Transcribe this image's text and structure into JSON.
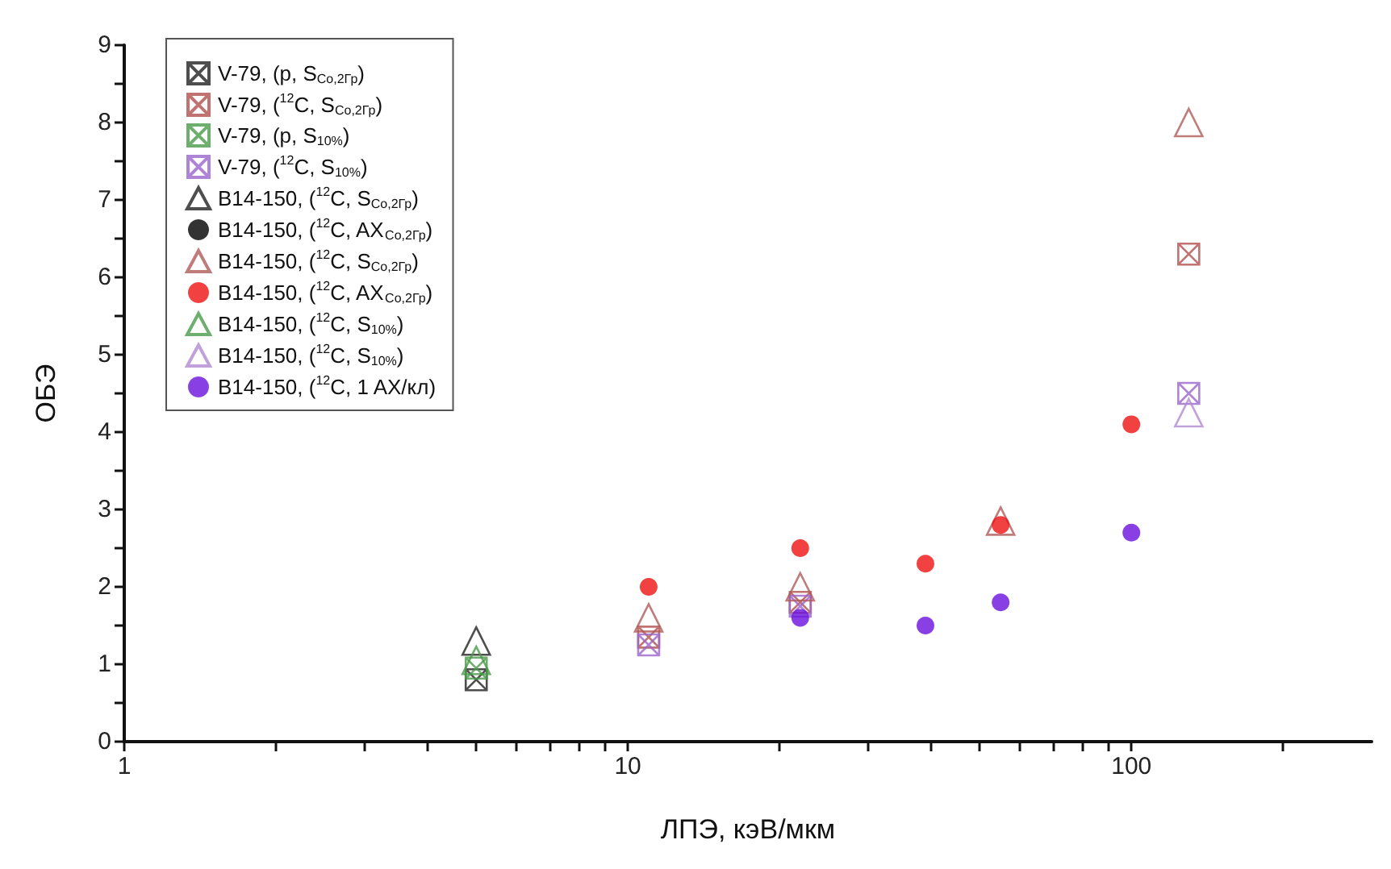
{
  "chart_data": {
    "type": "scatter",
    "xlabel": "ЛПЭ, кэВ/мкм",
    "ylabel": "ОБЭ",
    "log": "x",
    "grid": false,
    "legend": "top left",
    "xlim": [
      1,
      300
    ],
    "xticks": [
      1,
      {
        "value": 2,
        "label": null
      },
      {
        "value": 3,
        "label": null
      },
      {
        "value": 4,
        "label": null
      },
      {
        "value": 5,
        "label": null
      },
      {
        "value": 6,
        "label": null
      },
      {
        "value": 7,
        "label": null
      },
      {
        "value": 8,
        "label": null
      },
      {
        "value": 9,
        "label": null
      },
      10,
      {
        "value": 20,
        "label": null
      },
      {
        "value": 30,
        "label": null
      },
      {
        "value": 40,
        "label": null
      },
      {
        "value": 50,
        "label": null
      },
      {
        "value": 60,
        "label": null
      },
      {
        "value": 70,
        "label": null
      },
      {
        "value": 80,
        "label": null
      },
      {
        "value": 90,
        "label": null
      },
      100,
      {
        "value": 200,
        "label": null
      }
    ],
    "ylim": [
      0,
      9
    ],
    "yticks": [
      0,
      {
        "value": 0.5,
        "label": null
      },
      1,
      {
        "value": 1.5,
        "label": null
      },
      2,
      {
        "value": 2.5,
        "label": null
      },
      3,
      {
        "value": 3.5,
        "label": null
      },
      4,
      {
        "value": 4.5,
        "label": null
      },
      5,
      {
        "value": 5.5,
        "label": null
      },
      6,
      {
        "value": 6.5,
        "label": null
      },
      7,
      {
        "value": 7.5,
        "label": null
      },
      8,
      {
        "value": 8.5,
        "label": null
      },
      9
    ],
    "series": [
      {
        "name": "V-79, (p, S$_{Co,2Гр}$)",
        "color": "#222222",
        "marker": "cross",
        "x": [
          5
        ],
        "values": [
          0.8
        ]
      },
      {
        "name": "V-79, ($^{12}$C, S$_{Co,2Гр}$)",
        "color": "#b0504d",
        "marker": "cross",
        "x": [
          11,
          22,
          130
        ],
        "values": [
          1.35,
          1.8,
          6.3
        ]
      },
      {
        "name": "V-79, (p, S$_{10%}$)",
        "color": "#4a9a4a",
        "marker": "cross",
        "x": [
          5
        ],
        "values": [
          0.95
        ]
      },
      {
        "name": "V-79, ($^{12}$C, S$_{10%}$)",
        "color": "#9a66cc",
        "marker": "cross",
        "x": [
          11,
          22,
          130
        ],
        "values": [
          1.25,
          1.75,
          4.5
        ]
      },
      {
        "name": "B14-150, ($^{12}$C, S$_{Co,2Гр}$)",
        "color": "#222222",
        "marker": "triangle",
        "x": [
          5
        ],
        "values": [
          1.3
        ]
      },
      {
        "name": "B14-150, ($^{12}$C, AX$_{Co,2Гр}$)",
        "color": "#000000",
        "marker": "circle"
      },
      {
        "name": "B14-150, ($^{12}$C, S$_{Co,2Гр}$)",
        "color": "#b05a5a",
        "marker": "triangle",
        "x": [
          11,
          22,
          55,
          130
        ],
        "values": [
          1.6,
          2.0,
          2.85,
          8.0
        ]
      },
      {
        "name": "B14-150, ($^{12}$C, AX$_{Co,2Гр}$)",
        "color": "#ee1111",
        "marker": "circle",
        "x": [
          11,
          22,
          39,
          55,
          100
        ],
        "values": [
          2.0,
          2.5,
          2.3,
          2.8,
          4.1
        ]
      },
      {
        "name": "B14-150, ($^{12}$C, S$_{10%}$)",
        "color": "#4a9a4a",
        "marker": "triangle",
        "x": [
          5
        ],
        "values": [
          1.05
        ]
      },
      {
        "name": "B14-150, ($^{12}$C, S$_{10%}$)",
        "color": "#b08ad0",
        "marker": "triangle",
        "x": [
          130
        ],
        "values": [
          4.25
        ]
      },
      {
        "name": "B14-150, ($^{12}$C, 1 AX/кл)",
        "color": "#6a10dd",
        "marker": "circle",
        "x": [
          22,
          39,
          55,
          100
        ],
        "values": [
          1.6,
          1.5,
          1.8,
          2.7
        ]
      }
    ]
  }
}
